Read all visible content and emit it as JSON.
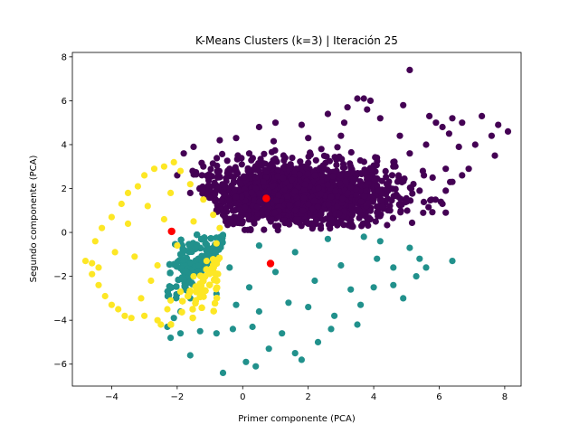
{
  "chart_data": {
    "type": "scatter",
    "title": "K-Means Clusters (k=3)  |  Iteración 25",
    "xlabel": "Primer componente (PCA)",
    "ylabel": "Segundo componente (PCA)",
    "xlim": [
      -5.2,
      8.5
    ],
    "ylim": [
      -7.0,
      8.2
    ],
    "xticks": [
      -4,
      -2,
      0,
      2,
      4,
      6,
      8
    ],
    "yticks": [
      -6,
      -4,
      -2,
      0,
      2,
      4,
      6,
      8
    ],
    "grid": false,
    "legend": "none",
    "series": [
      {
        "color": "#440154",
        "approx_bounds": {
          "x": [
            -2.2,
            7.9
          ],
          "y": [
            0.1,
            7.4
          ]
        },
        "points": [
          [
            5.1,
            7.4
          ],
          [
            3.5,
            6.1
          ],
          [
            3.7,
            6.1
          ],
          [
            3.9,
            6.0
          ],
          [
            3.2,
            5.7
          ],
          [
            3.8,
            5.6
          ],
          [
            4.9,
            5.8
          ],
          [
            2.6,
            5.4
          ],
          [
            4.2,
            5.2
          ],
          [
            5.7,
            5.3
          ],
          [
            6.4,
            5.2
          ],
          [
            7.3,
            5.3
          ],
          [
            5.9,
            5.0
          ],
          [
            6.1,
            4.8
          ],
          [
            6.7,
            5.0
          ],
          [
            7.8,
            4.9
          ],
          [
            8.1,
            4.6
          ],
          [
            6.3,
            4.5
          ],
          [
            7.1,
            4.0
          ],
          [
            7.6,
            4.4
          ],
          [
            5.6,
            4.0
          ],
          [
            6.6,
            3.9
          ],
          [
            1.8,
            4.9
          ],
          [
            1.0,
            5.0
          ],
          [
            0.5,
            4.8
          ],
          [
            -0.2,
            4.3
          ],
          [
            -0.7,
            4.2
          ],
          [
            -1.5,
            3.9
          ],
          [
            -1.8,
            3.6
          ],
          [
            7.7,
            3.5
          ],
          [
            6.2,
            2.9
          ],
          [
            5.5,
            2.8
          ],
          [
            6.9,
            2.9
          ],
          [
            6.7,
            2.6
          ],
          [
            6.4,
            2.3
          ],
          [
            5.8,
            2.5
          ],
          [
            6.2,
            1.9
          ],
          [
            5.4,
            1.9
          ],
          [
            6.1,
            1.3
          ],
          [
            6.2,
            0.9
          ],
          [
            4.5,
            1.0
          ],
          [
            3.9,
            0.6
          ],
          [
            2.0,
            0.4
          ],
          [
            1.0,
            0.3
          ],
          [
            0.0,
            0.5
          ],
          [
            -0.8,
            1.0
          ],
          [
            -1.6,
            1.8
          ],
          [
            -2.0,
            2.6
          ],
          [
            -1.2,
            3.0
          ],
          [
            3.0,
            4.4
          ],
          [
            4.8,
            4.4
          ],
          [
            5.1,
            3.6
          ],
          [
            2.4,
            3.8
          ],
          [
            4.1,
            3.4
          ],
          [
            3.3,
            3.0
          ],
          [
            2.2,
            2.6
          ],
          [
            1.3,
            3.4
          ],
          [
            0.2,
            3.6
          ],
          [
            -0.4,
            2.9
          ],
          [
            0.9,
            2.1
          ],
          [
            2.7,
            1.6
          ],
          [
            4.4,
            2.2
          ],
          [
            1.6,
            1.0
          ],
          [
            -0.2,
            1.6
          ],
          [
            3.6,
            0.8
          ],
          [
            5.0,
            1.4
          ],
          [
            3.1,
            5.0
          ],
          [
            2.0,
            4.3
          ],
          [
            4.6,
            3.0
          ],
          [
            1.5,
            2.4
          ]
        ]
      },
      {
        "color": "#21918c",
        "approx_bounds": {
          "x": [
            -2.3,
            6.4
          ],
          "y": [
            -6.4,
            -0.1
          ]
        },
        "points": [
          [
            -0.6,
            -6.4
          ],
          [
            0.1,
            -5.9
          ],
          [
            0.4,
            -6.1
          ],
          [
            1.8,
            -5.8
          ],
          [
            -1.6,
            -5.6
          ],
          [
            0.8,
            -5.3
          ],
          [
            1.6,
            -5.5
          ],
          [
            2.3,
            -5.0
          ],
          [
            -2.2,
            -4.8
          ],
          [
            -1.9,
            -4.6
          ],
          [
            -1.3,
            -4.5
          ],
          [
            -0.8,
            -4.6
          ],
          [
            -0.3,
            -4.4
          ],
          [
            0.3,
            -4.3
          ],
          [
            1.2,
            -4.6
          ],
          [
            2.7,
            -4.4
          ],
          [
            3.5,
            -4.2
          ],
          [
            -2.3,
            -4.3
          ],
          [
            -1.9,
            -3.6
          ],
          [
            -2.1,
            -3.9
          ],
          [
            4.9,
            -3.0
          ],
          [
            4.6,
            -2.4
          ],
          [
            5.3,
            -2.0
          ],
          [
            6.4,
            -1.3
          ],
          [
            5.6,
            -1.6
          ],
          [
            5.1,
            -0.7
          ],
          [
            5.4,
            -1.2
          ],
          [
            4.6,
            -1.6
          ],
          [
            4.0,
            -2.5
          ],
          [
            3.6,
            -3.3
          ],
          [
            2.8,
            -3.8
          ],
          [
            2.0,
            -3.4
          ],
          [
            1.4,
            -3.2
          ],
          [
            0.5,
            -3.6
          ],
          [
            -0.2,
            -3.3
          ],
          [
            -0.8,
            -2.8
          ],
          [
            -1.3,
            -2.4
          ],
          [
            -0.4,
            -1.6
          ],
          [
            0.5,
            -0.6
          ],
          [
            1.6,
            -0.9
          ],
          [
            2.6,
            -0.3
          ],
          [
            3.7,
            -0.2
          ],
          [
            4.2,
            -0.4
          ],
          [
            3.0,
            -1.5
          ],
          [
            2.2,
            -2.2
          ],
          [
            1.0,
            -1.8
          ],
          [
            0.2,
            -2.5
          ],
          [
            -1.6,
            -3.0
          ],
          [
            3.3,
            -2.6
          ],
          [
            4.1,
            -1.2
          ]
        ]
      },
      {
        "color": "#fde725",
        "approx_bounds": {
          "x": [
            -4.8,
            -0.7
          ],
          "y": [
            -4.2,
            3.2
          ]
        },
        "points": [
          [
            -4.8,
            -1.3
          ],
          [
            -4.6,
            -1.4
          ],
          [
            -4.4,
            -1.6
          ],
          [
            -4.5,
            -0.4
          ],
          [
            -4.6,
            -1.9
          ],
          [
            -4.4,
            -2.4
          ],
          [
            -4.2,
            -2.9
          ],
          [
            -4.0,
            -3.3
          ],
          [
            -3.8,
            -3.5
          ],
          [
            -3.6,
            -3.8
          ],
          [
            -3.4,
            -3.9
          ],
          [
            -3.0,
            -3.8
          ],
          [
            -2.6,
            -4.0
          ],
          [
            -2.5,
            -4.2
          ],
          [
            -2.3,
            -3.5
          ],
          [
            -4.3,
            0.2
          ],
          [
            -4.0,
            0.7
          ],
          [
            -3.7,
            1.3
          ],
          [
            -3.5,
            1.8
          ],
          [
            -3.2,
            2.1
          ],
          [
            -3.0,
            2.6
          ],
          [
            -2.7,
            2.9
          ],
          [
            -2.4,
            3.0
          ],
          [
            -2.1,
            3.2
          ],
          [
            -1.9,
            2.8
          ],
          [
            -1.6,
            2.2
          ],
          [
            -1.2,
            1.5
          ],
          [
            -0.9,
            0.8
          ],
          [
            -0.7,
            0.2
          ],
          [
            -0.8,
            -0.5
          ],
          [
            -1.1,
            -1.3
          ],
          [
            -1.5,
            -2.0
          ],
          [
            -1.9,
            -2.7
          ],
          [
            -2.2,
            -3.1
          ],
          [
            -2.8,
            -2.2
          ],
          [
            -3.3,
            -1.1
          ],
          [
            -3.5,
            0.4
          ],
          [
            -2.9,
            1.2
          ],
          [
            -2.4,
            0.6
          ],
          [
            -2.0,
            -0.6
          ],
          [
            -2.6,
            -1.5
          ],
          [
            -3.9,
            -0.9
          ],
          [
            -1.5,
            0.5
          ],
          [
            -2.2,
            1.8
          ],
          [
            -3.1,
            -3.0
          ]
        ]
      }
    ],
    "centroids": {
      "color": "#ff0000",
      "points": [
        [
          0.72,
          1.55
        ],
        [
          -2.17,
          0.05
        ],
        [
          0.85,
          -1.42
        ]
      ]
    }
  }
}
